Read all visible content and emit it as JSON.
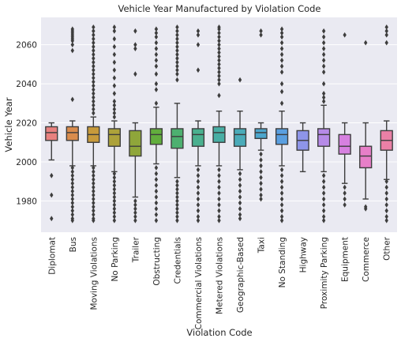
{
  "chart_data": {
    "type": "boxplot",
    "title": "Vehicle Year Manufactured by Violation Code",
    "xlabel": "Violation Code",
    "ylabel": "Vehicle Year",
    "ylim": [
      1964,
      2074
    ],
    "yticks": [
      1980,
      2000,
      2020,
      2040,
      2060
    ],
    "grid": true,
    "categories": [
      "Diplomat",
      "Bus",
      "Moving Violations",
      "No Parking",
      "Trailer",
      "Obstructing",
      "Credentials",
      "Commercial Violations",
      "Metered Violations",
      "Geographic-Based",
      "Taxi",
      "No Standing",
      "Highway",
      "Proximity Parking",
      "Equipment",
      "Commerce",
      "Other"
    ],
    "colors": [
      "#e8817f",
      "#d98c4d",
      "#c79a3b",
      "#ada23a",
      "#8fa63a",
      "#62ae3d",
      "#4db070",
      "#4ab08f",
      "#48aea4",
      "#4aabb9",
      "#4ca6cc",
      "#5a9fe0",
      "#8e95e8",
      "#b68ae8",
      "#d680e0",
      "#e77fc8",
      "#ea80a6"
    ],
    "boxes": [
      {
        "q1": 2011,
        "median": 2015,
        "q3": 2018,
        "whislo": 2001,
        "whishi": 2020,
        "outliers": [
          1993,
          1983,
          1971
        ]
      },
      {
        "q1": 2011,
        "median": 2015,
        "q3": 2018,
        "whislo": 1998,
        "whishi": 2021,
        "outliers": [
          2032,
          2057,
          2060,
          2062,
          2063,
          2064,
          2065,
          2066,
          2067,
          2068,
          1997,
          1995,
          1993,
          1991,
          1989,
          1987,
          1985,
          1983,
          1981,
          1979,
          1977,
          1975,
          1973,
          1971,
          1970
        ]
      },
      {
        "q1": 2010,
        "median": 2014,
        "q3": 2018,
        "whislo": 1998,
        "whishi": 2023,
        "outliers": [
          2025,
          2027,
          2029,
          2031,
          2033,
          2035,
          2037,
          2039,
          2041,
          2043,
          2045,
          2047,
          2049,
          2051,
          2053,
          2055,
          2057,
          2059,
          2061,
          2063,
          2065,
          2067,
          2069,
          1997,
          1995,
          1993,
          1991,
          1989,
          1987,
          1985,
          1983,
          1981,
          1979,
          1977,
          1975,
          1973,
          1971,
          1970
        ]
      },
      {
        "q1": 2008,
        "median": 2014,
        "q3": 2017,
        "whislo": 1995,
        "whishi": 2021,
        "outliers": [
          2023,
          2025,
          2027,
          2029,
          2031,
          2035,
          2039,
          2043,
          2047,
          2051,
          2055,
          2059,
          2063,
          2067,
          2069,
          1994,
          1992,
          1990,
          1988,
          1986,
          1984,
          1982,
          1980,
          1978,
          1976,
          1974,
          1972,
          1970
        ]
      },
      {
        "q1": 2003,
        "median": 2008,
        "q3": 2016,
        "whislo": 1982,
        "whishi": 2020,
        "outliers": [
          2045,
          2058,
          2060,
          2067,
          1980,
          1978,
          1976,
          1974,
          1972,
          1970
        ]
      },
      {
        "q1": 2009,
        "median": 2014,
        "q3": 2017,
        "whislo": 1999,
        "whishi": 2028,
        "outliers": [
          2030,
          2037,
          2040,
          2045,
          2049,
          2052,
          2055,
          2058,
          2061,
          2064,
          2066,
          2068,
          1997,
          1994,
          1991,
          1988,
          1985,
          1982,
          1979,
          1976,
          1973,
          1970
        ]
      },
      {
        "q1": 2007,
        "median": 2013,
        "q3": 2017,
        "whislo": 1992,
        "whishi": 2030,
        "outliers": [
          2042,
          2045,
          2047,
          2049,
          2051,
          2053,
          2055,
          2057,
          2059,
          2061,
          2063,
          2065,
          2067,
          2069,
          1990,
          1988,
          1986,
          1984,
          1982,
          1980,
          1978,
          1976,
          1974,
          1972,
          1970
        ]
      },
      {
        "q1": 2008,
        "median": 2014,
        "q3": 2017,
        "whislo": 1998,
        "whishi": 2021,
        "outliers": [
          2047,
          2060,
          2065,
          2067,
          1996,
          1993,
          1990,
          1987,
          1984,
          1981,
          1978,
          1975,
          1972,
          1970
        ]
      },
      {
        "q1": 2010,
        "median": 2015,
        "q3": 2018,
        "whislo": 1998,
        "whishi": 2026,
        "outliers": [
          2034,
          2040,
          2042,
          2044,
          2046,
          2048,
          2050,
          2052,
          2054,
          2056,
          2058,
          2060,
          2062,
          2064,
          2066,
          2068,
          2069,
          1996,
          1993,
          1990,
          1987,
          1984,
          1981,
          1978,
          1975,
          1972,
          1970
        ]
      },
      {
        "q1": 2008,
        "median": 2014,
        "q3": 2017,
        "whislo": 1996,
        "whishi": 2026,
        "outliers": [
          2042,
          1994,
          1991,
          1988,
          1985,
          1982,
          1979,
          1976,
          1973,
          1971
        ]
      },
      {
        "q1": 2012,
        "median": 2015,
        "q3": 2017,
        "whislo": 2006,
        "whishi": 2020,
        "outliers": [
          2065,
          2067,
          2004,
          2001,
          1998,
          1995,
          1992,
          1989,
          1986,
          1983,
          1981
        ]
      },
      {
        "q1": 2009,
        "median": 2014,
        "q3": 2017,
        "whislo": 1998,
        "whishi": 2026,
        "outliers": [
          2030,
          2036,
          2040,
          2046,
          2049,
          2052,
          2055,
          2058,
          2061,
          2064,
          2066,
          2068,
          1996,
          1993,
          1990,
          1987,
          1984,
          1981,
          1978,
          1975,
          1972,
          1970
        ]
      },
      {
        "q1": 2006,
        "median": 2011,
        "q3": 2016,
        "whislo": 1995,
        "whishi": 2020,
        "outliers": []
      },
      {
        "q1": 2008,
        "median": 2014,
        "q3": 2017,
        "whislo": 1995,
        "whishi": 2029,
        "outliers": [
          2031,
          2033,
          2035,
          2040,
          2046,
          2049,
          2052,
          2055,
          2058,
          2061,
          2064,
          2067,
          1993,
          1990,
          1987,
          1984,
          1981,
          1978,
          1975,
          1972,
          1970
        ]
      },
      {
        "q1": 2004,
        "median": 2008,
        "q3": 2014,
        "whislo": 1989,
        "whishi": 2020,
        "outliers": [
          2065,
          1987,
          1984,
          1981,
          1978
        ]
      },
      {
        "q1": 1997,
        "median": 2003,
        "q3": 2008,
        "whislo": 1981,
        "whishi": 2020,
        "outliers": [
          2061,
          1977,
          1976
        ]
      },
      {
        "q1": 2006,
        "median": 2011,
        "q3": 2016,
        "whislo": 1991,
        "whishi": 2021,
        "outliers": [
          2061,
          2065,
          2067,
          2069,
          1990,
          1987,
          1984,
          1981,
          1978,
          1975,
          1972,
          1970
        ]
      }
    ]
  }
}
